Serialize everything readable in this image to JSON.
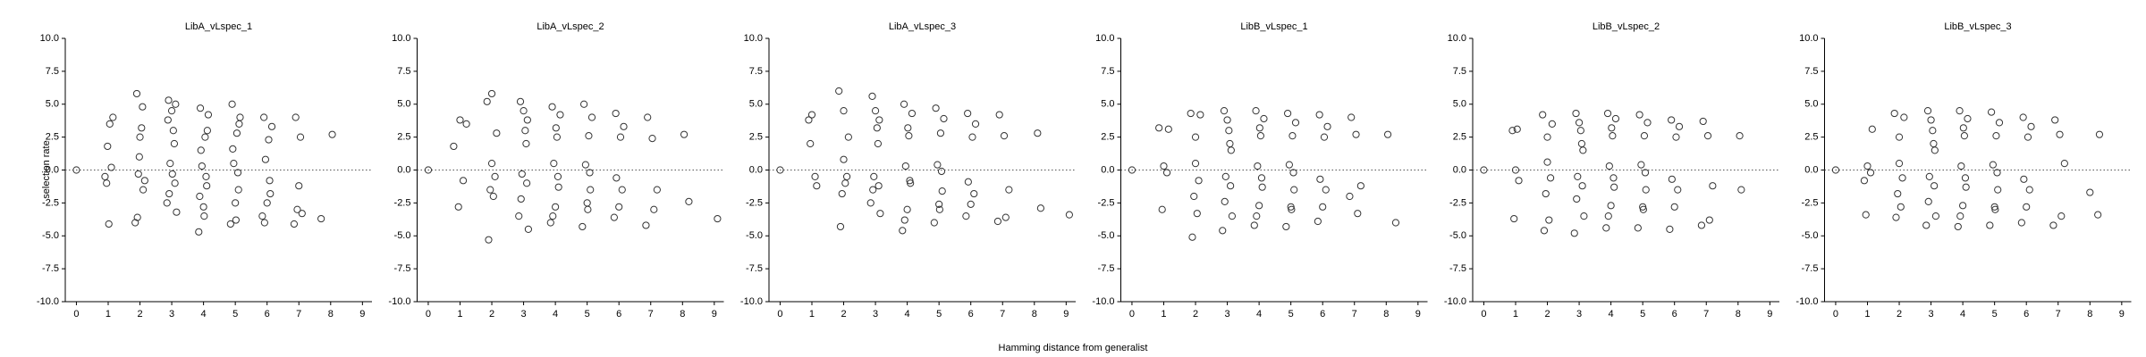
{
  "xlabel": "Hamming distance from generalist",
  "chart_data": [
    {
      "type": "scatter",
      "title": "LibA_vLspec_1",
      "ylabel": "selection rate",
      "xlim": [
        -0.35,
        9.3
      ],
      "ylim": [
        -10,
        10
      ],
      "hline": 0,
      "xticks": [
        0,
        1,
        2,
        3,
        4,
        5,
        6,
        7,
        8,
        9
      ],
      "yticks": [
        {
          "value": -10,
          "label": "-10.0"
        },
        {
          "value": -7.5,
          "label": "-7.5"
        },
        {
          "value": -5,
          "label": "-5.0"
        },
        {
          "value": -2.5,
          "label": "-2.5"
        },
        {
          "value": 0,
          "label": "0.0"
        },
        {
          "value": 2.5,
          "label": "2.5"
        },
        {
          "value": 5,
          "label": "5.0"
        },
        {
          "value": 7.5,
          "label": "7.5"
        },
        {
          "value": 10,
          "label": "10.0"
        }
      ],
      "x": [
        0,
        0.98,
        1.05,
        1.1,
        0.95,
        1.02,
        1.15,
        0.9,
        1.9,
        2.05,
        1.95,
        2.1,
        1.85,
        2.0,
        2.15,
        1.92,
        2.08,
        1.98,
        2.9,
        3.05,
        3.1,
        2.85,
        3.0,
        2.95,
        3.15,
        3.08,
        2.92,
        3.02,
        3.12,
        2.88,
        3.9,
        4.05,
        4.1,
        3.85,
        4.0,
        3.95,
        4.15,
        4.08,
        3.92,
        4.02,
        4.12,
        3.88,
        4.9,
        5.05,
        5.1,
        4.85,
        5.0,
        4.95,
        5.15,
        5.08,
        4.92,
        5.02,
        5.12,
        5.9,
        6.05,
        6.1,
        5.85,
        6.0,
        5.95,
        6.15,
        6.08,
        5.92,
        6.9,
        7.05,
        7.1,
        6.85,
        7.0,
        6.95,
        7.7,
        8.05
      ],
      "y": [
        0,
        1.8,
        3.5,
        0.2,
        -1.0,
        -4.1,
        4.0,
        -0.5,
        5.8,
        3.2,
        -0.3,
        -1.5,
        -4.0,
        2.5,
        -0.8,
        -3.6,
        4.8,
        1.0,
        5.3,
        3.0,
        -1.0,
        -2.5,
        4.5,
        0.5,
        -3.2,
        2.0,
        -1.8,
        -0.3,
        5.0,
        3.8,
        4.7,
        2.5,
        -1.2,
        -4.7,
        -2.8,
        0.3,
        4.2,
        -0.5,
        1.5,
        -3.5,
        3.0,
        -2.0,
        5.0,
        2.8,
        -1.5,
        -4.1,
        -2.5,
        0.5,
        4.0,
        -0.2,
        1.6,
        -3.8,
        3.5,
        4.0,
        2.3,
        -1.8,
        -3.5,
        -2.5,
        0.8,
        3.3,
        -0.8,
        -4.0,
        4.0,
        2.5,
        -3.3,
        -4.1,
        -1.2,
        -3.0,
        -3.7,
        2.7
      ]
    },
    {
      "type": "scatter",
      "title": "LibA_vLspec_2",
      "xlim": [
        -0.35,
        9.3
      ],
      "ylim": [
        -10,
        10
      ],
      "hline": 0,
      "xticks": [
        0,
        1,
        2,
        3,
        4,
        5,
        6,
        7,
        8,
        9
      ],
      "yticks": [
        {
          "value": -10,
          "label": "-10.0"
        },
        {
          "value": -7.5,
          "label": "-7.5"
        },
        {
          "value": -5,
          "label": "-5.0"
        },
        {
          "value": -2.5,
          "label": "-2.5"
        },
        {
          "value": 0,
          "label": "0.0"
        },
        {
          "value": 2.5,
          "label": "2.5"
        },
        {
          "value": 5,
          "label": "5.0"
        },
        {
          "value": 7.5,
          "label": "7.5"
        },
        {
          "value": 10,
          "label": "10.0"
        }
      ],
      "x": [
        0,
        0.8,
        1.0,
        1.1,
        1.2,
        0.95,
        1.85,
        2.0,
        2.1,
        1.95,
        2.15,
        1.9,
        2.05,
        2.0,
        2.9,
        3.05,
        3.1,
        2.85,
        3.0,
        2.95,
        3.15,
        3.08,
        2.92,
        3.12,
        3.9,
        4.05,
        4.1,
        3.85,
        4.0,
        3.95,
        4.15,
        4.08,
        3.92,
        4.02,
        4.9,
        5.05,
        5.1,
        4.85,
        5.0,
        4.95,
        5.15,
        5.08,
        5.02,
        5.9,
        6.05,
        6.1,
        5.85,
        6.0,
        6.15,
        5.92,
        6.9,
        7.05,
        7.1,
        6.85,
        7.2,
        8.05,
        8.2,
        9.1
      ],
      "y": [
        0,
        1.8,
        3.8,
        -0.8,
        3.5,
        -2.8,
        5.2,
        5.8,
        -0.5,
        -1.5,
        2.8,
        -5.3,
        -2.0,
        0.5,
        5.2,
        3.0,
        -1.0,
        -3.5,
        4.5,
        -0.3,
        -4.5,
        2.0,
        -2.2,
        3.8,
        4.8,
        2.5,
        -1.3,
        -4.0,
        -2.8,
        0.5,
        4.2,
        -0.5,
        -3.5,
        3.2,
        5.0,
        2.6,
        -1.5,
        -4.3,
        -2.5,
        0.4,
        4.0,
        -0.2,
        -3.0,
        4.3,
        2.5,
        -1.5,
        -3.6,
        -2.8,
        3.3,
        -0.6,
        4.0,
        2.4,
        -3.0,
        -4.2,
        -1.5,
        2.7,
        -2.4,
        -3.7
      ]
    },
    {
      "type": "scatter",
      "title": "LibA_vLspec_3",
      "xlim": [
        -0.35,
        9.3
      ],
      "ylim": [
        -10,
        10
      ],
      "hline": 0,
      "xticks": [
        0,
        1,
        2,
        3,
        4,
        5,
        6,
        7,
        8,
        9
      ],
      "yticks": [
        {
          "value": -10,
          "label": "-10.0"
        },
        {
          "value": -7.5,
          "label": "-7.5"
        },
        {
          "value": -5,
          "label": "-5.0"
        },
        {
          "value": -2.5,
          "label": "-2.5"
        },
        {
          "value": 0,
          "label": "0.0"
        },
        {
          "value": 2.5,
          "label": "2.5"
        },
        {
          "value": 5,
          "label": "5.0"
        },
        {
          "value": 7.5,
          "label": "7.5"
        },
        {
          "value": 10,
          "label": "10.0"
        }
      ],
      "x": [
        0,
        0.9,
        1.0,
        1.1,
        1.15,
        0.95,
        1.85,
        2.0,
        2.1,
        1.95,
        2.15,
        1.9,
        2.05,
        2.0,
        2.9,
        3.05,
        3.1,
        2.85,
        3.0,
        2.95,
        3.15,
        3.08,
        2.92,
        3.12,
        3.9,
        4.05,
        4.1,
        3.85,
        4.0,
        3.95,
        4.15,
        4.08,
        3.92,
        4.02,
        4.9,
        5.05,
        5.1,
        4.85,
        5.0,
        4.95,
        5.15,
        5.08,
        5.02,
        5.9,
        6.05,
        6.1,
        5.85,
        6.0,
        6.15,
        5.92,
        6.9,
        7.05,
        7.1,
        6.85,
        7.2,
        8.1,
        8.2,
        9.1
      ],
      "y": [
        0,
        3.8,
        4.2,
        -0.5,
        -1.2,
        2.0,
        6.0,
        4.5,
        -0.5,
        -1.8,
        2.5,
        -4.3,
        -1.0,
        0.8,
        5.6,
        3.2,
        -1.2,
        -2.5,
        4.5,
        -0.5,
        -3.3,
        2.0,
        -1.5,
        3.8,
        5.0,
        2.6,
        -1.0,
        -4.6,
        -3.0,
        0.3,
        4.3,
        -0.8,
        -3.8,
        3.2,
        4.7,
        2.8,
        -1.6,
        -4.0,
        -2.6,
        0.4,
        3.9,
        -0.1,
        -3.0,
        4.3,
        2.5,
        -1.8,
        -3.5,
        -2.6,
        3.5,
        -0.9,
        4.2,
        2.6,
        -3.6,
        -3.9,
        -1.5,
        2.8,
        -2.9,
        -3.4
      ]
    },
    {
      "type": "scatter",
      "title": "LibB_vLspec_1",
      "xlim": [
        -0.35,
        9.3
      ],
      "ylim": [
        -10,
        10
      ],
      "hline": 0,
      "xticks": [
        0,
        1,
        2,
        3,
        4,
        5,
        6,
        7,
        8,
        9
      ],
      "yticks": [
        {
          "value": -10,
          "label": "-10.0"
        },
        {
          "value": -7.5,
          "label": "-7.5"
        },
        {
          "value": -5,
          "label": "-5.0"
        },
        {
          "value": -2.5,
          "label": "-2.5"
        },
        {
          "value": 0,
          "label": "0.0"
        },
        {
          "value": 2.5,
          "label": "2.5"
        },
        {
          "value": 5,
          "label": "5.0"
        },
        {
          "value": 7.5,
          "label": "7.5"
        },
        {
          "value": 10,
          "label": "10.0"
        }
      ],
      "x": [
        0,
        0.85,
        1.0,
        1.1,
        0.95,
        1.15,
        1.85,
        2.0,
        2.1,
        1.95,
        2.15,
        1.9,
        2.05,
        2.0,
        2.9,
        3.05,
        3.1,
        2.85,
        3.0,
        2.95,
        3.15,
        3.08,
        2.92,
        3.12,
        3.9,
        4.05,
        4.1,
        3.85,
        4.0,
        3.95,
        4.15,
        4.08,
        3.92,
        4.02,
        4.9,
        5.05,
        5.1,
        4.85,
        5.0,
        4.95,
        5.15,
        5.08,
        5.02,
        5.9,
        6.05,
        6.1,
        5.85,
        6.0,
        6.15,
        5.92,
        6.9,
        7.05,
        7.1,
        6.85,
        7.2,
        8.05,
        8.3
      ],
      "y": [
        0,
        3.2,
        0.3,
        -0.2,
        -3.0,
        3.1,
        4.3,
        2.5,
        -0.8,
        -2.0,
        4.2,
        -5.1,
        -3.3,
        0.5,
        4.5,
        3.0,
        -1.2,
        -4.6,
        3.8,
        -0.5,
        -3.5,
        2.0,
        -2.4,
        1.5,
        4.5,
        2.6,
        -1.3,
        -4.2,
        -2.7,
        0.3,
        3.9,
        -0.6,
        -3.5,
        3.2,
        4.3,
        2.6,
        -1.5,
        -4.3,
        -2.8,
        0.4,
        3.6,
        -0.2,
        -3.0,
        4.2,
        2.5,
        -1.5,
        -3.9,
        -2.8,
        3.3,
        -0.7,
        4.0,
        2.7,
        -3.3,
        -2.0,
        -1.2,
        2.7,
        -4.0
      ]
    },
    {
      "type": "scatter",
      "title": "LibB_vLspec_2",
      "xlim": [
        -0.35,
        9.3
      ],
      "ylim": [
        -10,
        10
      ],
      "hline": 0,
      "xticks": [
        0,
        1,
        2,
        3,
        4,
        5,
        6,
        7,
        8,
        9
      ],
      "yticks": [
        {
          "value": -10,
          "label": "-10.0"
        },
        {
          "value": -7.5,
          "label": "-7.5"
        },
        {
          "value": -5,
          "label": "-5.0"
        },
        {
          "value": -2.5,
          "label": "-2.5"
        },
        {
          "value": 0,
          "label": "0.0"
        },
        {
          "value": 2.5,
          "label": "2.5"
        },
        {
          "value": 5,
          "label": "5.0"
        },
        {
          "value": 7.5,
          "label": "7.5"
        },
        {
          "value": 10,
          "label": "10.0"
        }
      ],
      "x": [
        0,
        0.9,
        1.0,
        1.1,
        0.95,
        1.05,
        1.85,
        2.0,
        2.1,
        1.95,
        2.15,
        1.9,
        2.05,
        2.0,
        2.9,
        3.05,
        3.1,
        2.85,
        3.0,
        2.95,
        3.15,
        3.08,
        2.92,
        3.12,
        3.9,
        4.05,
        4.1,
        3.85,
        4.0,
        3.95,
        4.15,
        4.08,
        3.92,
        4.02,
        4.9,
        5.05,
        5.1,
        4.85,
        5.0,
        4.95,
        5.15,
        5.08,
        5.02,
        5.9,
        6.05,
        6.1,
        5.85,
        6.0,
        6.15,
        5.92,
        6.9,
        7.05,
        7.1,
        6.85,
        7.2,
        8.05,
        8.1
      ],
      "y": [
        0,
        3.0,
        0.0,
        -0.8,
        -3.7,
        3.1,
        4.2,
        2.5,
        -0.6,
        -1.8,
        3.5,
        -4.6,
        -3.8,
        0.6,
        4.3,
        3.0,
        -1.2,
        -4.8,
        3.6,
        -0.5,
        -3.5,
        2.0,
        -2.2,
        1.5,
        4.3,
        2.6,
        -1.3,
        -4.4,
        -2.7,
        0.3,
        3.9,
        -0.6,
        -3.5,
        3.2,
        4.2,
        2.6,
        -1.5,
        -4.4,
        -2.8,
        0.4,
        3.6,
        -0.2,
        -3.0,
        3.8,
        2.5,
        -1.5,
        -4.5,
        -2.8,
        3.3,
        -0.7,
        3.7,
        2.6,
        -3.8,
        -4.2,
        -1.2,
        2.6,
        -1.5
      ]
    },
    {
      "type": "scatter",
      "title": "LibB_vLspec_3",
      "xlim": [
        -0.35,
        9.3
      ],
      "ylim": [
        -10,
        10
      ],
      "hline": 0,
      "xticks": [
        0,
        1,
        2,
        3,
        4,
        5,
        6,
        7,
        8,
        9
      ],
      "yticks": [
        {
          "value": -10,
          "label": "-10.0"
        },
        {
          "value": -7.5,
          "label": "-7.5"
        },
        {
          "value": -5,
          "label": "-5.0"
        },
        {
          "value": -2.5,
          "label": "-2.5"
        },
        {
          "value": 0,
          "label": "0.0"
        },
        {
          "value": 2.5,
          "label": "2.5"
        },
        {
          "value": 5,
          "label": "5.0"
        },
        {
          "value": 7.5,
          "label": "7.5"
        },
        {
          "value": 10,
          "label": "10.0"
        }
      ],
      "x": [
        0,
        0.9,
        1.0,
        1.1,
        0.95,
        1.15,
        1.85,
        2.0,
        2.1,
        1.95,
        2.15,
        1.9,
        2.05,
        2.0,
        2.9,
        3.05,
        3.1,
        2.85,
        3.0,
        2.95,
        3.15,
        3.08,
        2.92,
        3.12,
        3.9,
        4.05,
        4.1,
        3.85,
        4.0,
        3.95,
        4.15,
        4.08,
        3.92,
        4.02,
        4.9,
        5.05,
        5.1,
        4.85,
        5.0,
        4.95,
        5.15,
        5.08,
        5.02,
        5.9,
        6.05,
        6.1,
        5.85,
        6.0,
        6.15,
        5.92,
        6.9,
        7.05,
        7.1,
        6.85,
        7.2,
        8.0,
        8.3,
        8.25
      ],
      "y": [
        0,
        -0.8,
        0.3,
        -0.2,
        -3.4,
        3.1,
        4.3,
        2.5,
        -0.6,
        -1.8,
        4.0,
        -3.6,
        -2.8,
        0.5,
        4.5,
        3.0,
        -1.2,
        -4.2,
        3.8,
        -0.5,
        -3.5,
        2.0,
        -2.4,
        1.5,
        4.5,
        2.6,
        -1.3,
        -4.3,
        -2.7,
        0.3,
        3.9,
        -0.6,
        -3.5,
        3.2,
        4.4,
        2.6,
        -1.5,
        -4.2,
        -2.8,
        0.4,
        3.6,
        -0.2,
        -3.0,
        4.0,
        2.5,
        -1.5,
        -4.0,
        -2.8,
        3.3,
        -0.7,
        3.8,
        2.7,
        -3.5,
        -4.2,
        0.5,
        -1.7,
        2.7,
        -3.4
      ]
    }
  ]
}
